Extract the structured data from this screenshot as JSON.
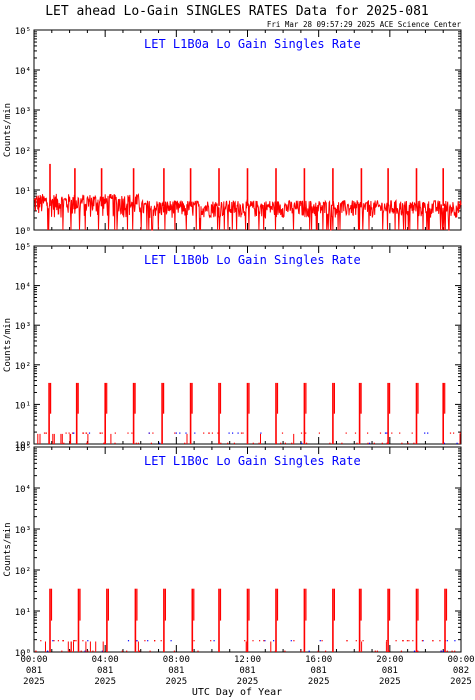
{
  "title": "LET ahead Lo-Gain SINGLES RATES Data for 2025-081",
  "timestamp": "Fri Mar 28 09:57:29 2025 ACE Science Center",
  "xlabel": "UTC Day of Year",
  "colors": {
    "data": "#ff0000",
    "panel_title": "#0000ff",
    "axes": "#000000",
    "minor_points": "#0000ff"
  },
  "chart_data": [
    {
      "type": "line",
      "title": "LET L1B0a Lo Gain Singles Rate",
      "ylabel": "Counts/min",
      "yscale": "log",
      "ylim": [
        1,
        100000
      ],
      "y_tick_labels": [
        "10⁰",
        "10¹",
        "10²",
        "10³",
        "10⁴",
        "10⁵"
      ],
      "xlim": [
        0,
        24
      ],
      "x_ticks_hours": [
        0,
        4,
        8,
        12,
        16,
        20,
        24
      ],
      "x_tick_labels": [
        [
          "00:00",
          "081",
          "2025"
        ],
        [
          "04:00",
          "081",
          "2025"
        ],
        [
          "08:00",
          "081",
          "2025"
        ],
        [
          "12:00",
          "081",
          "2025"
        ],
        [
          "16:00",
          "081",
          "2025"
        ],
        [
          "20:00",
          "081",
          "2025"
        ],
        [
          "00:00",
          "082",
          "2025"
        ]
      ],
      "baseline_counts": 4,
      "spikes": [
        {
          "hour": 0.9,
          "counts": 45
        },
        {
          "hour": 2.3,
          "counts": 35
        },
        {
          "hour": 3.8,
          "counts": 35
        },
        {
          "hour": 5.6,
          "counts": 35
        },
        {
          "hour": 7.3,
          "counts": 35
        },
        {
          "hour": 8.8,
          "counts": 35
        },
        {
          "hour": 10.4,
          "counts": 35
        },
        {
          "hour": 12.0,
          "counts": 35
        },
        {
          "hour": 13.6,
          "counts": 35
        },
        {
          "hour": 15.2,
          "counts": 35
        },
        {
          "hour": 16.8,
          "counts": 35
        },
        {
          "hour": 18.4,
          "counts": 35
        },
        {
          "hour": 19.9,
          "counts": 35
        },
        {
          "hour": 21.5,
          "counts": 35
        },
        {
          "hour": 23.0,
          "counts": 35
        }
      ]
    },
    {
      "type": "line",
      "title": "LET L1B0b Lo Gain Singles Rate",
      "ylabel": "Counts/min",
      "yscale": "log",
      "ylim": [
        1,
        100000
      ],
      "y_tick_labels": [
        "10⁰",
        "10¹",
        "10²",
        "10³",
        "10⁴",
        "10⁵"
      ],
      "xlim": [
        0,
        24
      ],
      "x_ticks_hours": [
        0,
        4,
        8,
        12,
        16,
        20,
        24
      ],
      "x_tick_labels": [
        [
          "00:00",
          "081",
          "2025"
        ],
        [
          "04:00",
          "081",
          "2025"
        ],
        [
          "08:00",
          "081",
          "2025"
        ],
        [
          "12:00",
          "081",
          "2025"
        ],
        [
          "16:00",
          "081",
          "2025"
        ],
        [
          "20:00",
          "081",
          "2025"
        ],
        [
          "00:00",
          "082",
          "2025"
        ]
      ],
      "baseline_counts": 1,
      "spikes": [
        {
          "hour": 0.85,
          "counts": 35
        },
        {
          "hour": 2.4,
          "counts": 35
        },
        {
          "hour": 4.0,
          "counts": 35
        },
        {
          "hour": 5.6,
          "counts": 35
        },
        {
          "hour": 7.2,
          "counts": 35
        },
        {
          "hour": 8.8,
          "counts": 35
        },
        {
          "hour": 10.4,
          "counts": 35
        },
        {
          "hour": 12.0,
          "counts": 35
        },
        {
          "hour": 13.6,
          "counts": 35
        },
        {
          "hour": 15.2,
          "counts": 35
        },
        {
          "hour": 16.8,
          "counts": 35
        },
        {
          "hour": 18.3,
          "counts": 35
        },
        {
          "hour": 19.9,
          "counts": 35
        },
        {
          "hour": 21.5,
          "counts": 35
        },
        {
          "hour": 23.0,
          "counts": 35
        }
      ]
    },
    {
      "type": "line",
      "title": "LET L1B0c Lo Gain Singles Rate",
      "ylabel": "Counts/min",
      "yscale": "log",
      "ylim": [
        1,
        100000
      ],
      "y_tick_labels": [
        "10⁰",
        "10¹",
        "10²",
        "10³",
        "10⁴",
        "10⁵"
      ],
      "xlim": [
        0,
        24
      ],
      "x_ticks_hours": [
        0,
        4,
        8,
        12,
        16,
        20,
        24
      ],
      "x_tick_labels": [
        [
          "00:00",
          "081",
          "2025"
        ],
        [
          "04:00",
          "081",
          "2025"
        ],
        [
          "08:00",
          "081",
          "2025"
        ],
        [
          "12:00",
          "081",
          "2025"
        ],
        [
          "16:00",
          "081",
          "2025"
        ],
        [
          "20:00",
          "081",
          "2025"
        ],
        [
          "00:00",
          "082",
          "2025"
        ]
      ],
      "baseline_counts": 1,
      "spikes": [
        {
          "hour": 0.9,
          "counts": 35
        },
        {
          "hour": 2.5,
          "counts": 35
        },
        {
          "hour": 4.1,
          "counts": 35
        },
        {
          "hour": 5.7,
          "counts": 35
        },
        {
          "hour": 7.3,
          "counts": 35
        },
        {
          "hour": 8.9,
          "counts": 35
        },
        {
          "hour": 10.4,
          "counts": 35
        },
        {
          "hour": 12.0,
          "counts": 35
        },
        {
          "hour": 13.6,
          "counts": 35
        },
        {
          "hour": 15.2,
          "counts": 35
        },
        {
          "hour": 16.8,
          "counts": 35
        },
        {
          "hour": 18.3,
          "counts": 35
        },
        {
          "hour": 19.9,
          "counts": 35
        },
        {
          "hour": 21.5,
          "counts": 35
        },
        {
          "hour": 23.1,
          "counts": 35
        }
      ]
    }
  ]
}
